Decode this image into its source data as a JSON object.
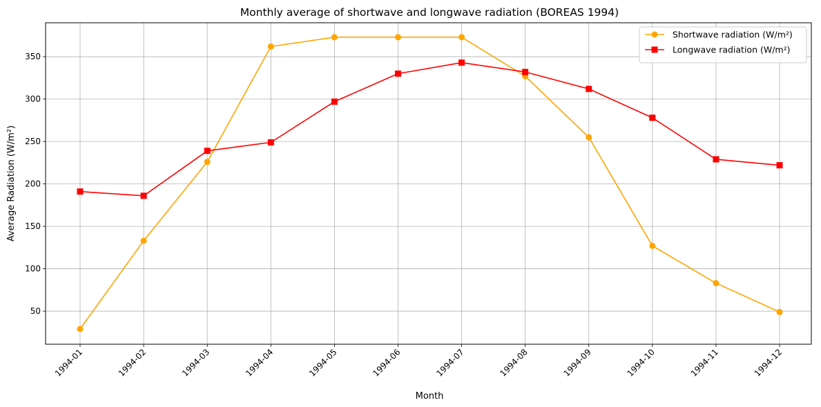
{
  "chart_data": {
    "type": "line",
    "title": "Monthly average of shortwave and longwave radiation (BOREAS 1994)",
    "xlabel": "Month",
    "ylabel": "Average Radiation (W/m²)",
    "categories": [
      "1994-01",
      "1994-02",
      "1994-03",
      "1994-04",
      "1994-05",
      "1994-06",
      "1994-07",
      "1994-08",
      "1994-09",
      "1994-10",
      "1994-11",
      "1994-12"
    ],
    "yticks": [
      50,
      100,
      150,
      200,
      250,
      300,
      350
    ],
    "ylim": [
      11,
      390
    ],
    "grid": true,
    "legend_position": "top-right",
    "series": [
      {
        "name": "Shortwave radiation (W/m²)",
        "color": "#FFA500",
        "marker": "circle",
        "values": [
          29,
          133,
          226,
          362,
          373,
          373,
          373,
          327,
          255,
          127,
          83,
          49
        ]
      },
      {
        "name": "Longwave radiation (W/m²)",
        "color": "#FF0000",
        "marker": "square",
        "values": [
          191,
          186,
          239,
          249,
          297,
          330,
          343,
          332,
          312,
          278,
          229,
          222
        ]
      }
    ]
  }
}
